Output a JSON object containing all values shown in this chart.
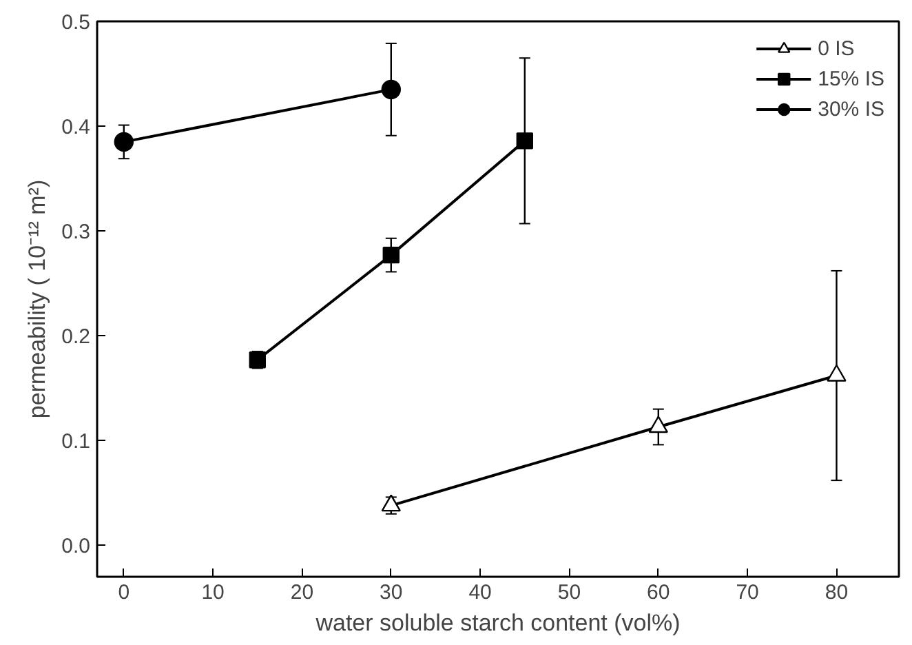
{
  "chart_data": {
    "type": "line",
    "xlabel": "water soluble starch content (vol%)",
    "ylabel": "permeability ( 10⁻¹² m²)",
    "xlim": [
      -3,
      87
    ],
    "ylim": [
      -0.03,
      0.5
    ],
    "xticks": [
      0,
      10,
      20,
      30,
      40,
      50,
      60,
      70,
      80
    ],
    "yticks": [
      {
        "value": 0,
        "label": "0.0"
      },
      {
        "value": 0.1,
        "label": "0.1"
      },
      {
        "value": 0.2,
        "label": "0.2"
      },
      {
        "value": 0.3,
        "label": "0.3"
      },
      {
        "value": 0.4,
        "label": "0.4"
      },
      {
        "value": 0.5,
        "label": "0.5"
      }
    ],
    "grid": false,
    "legend": "top right",
    "line_style": "solid",
    "series": [
      {
        "name": "0 IS",
        "color": "#000000",
        "marker": "triangle_open",
        "x": [
          30,
          60,
          80
        ],
        "values": [
          0.038,
          0.113,
          0.162
        ],
        "errors": [
          0.008,
          0.017,
          0.1
        ]
      },
      {
        "name": "15% IS",
        "color": "#000000",
        "marker": "square",
        "x": [
          15,
          30,
          45
        ],
        "values": [
          0.177,
          0.277,
          0.386
        ],
        "errors": [
          0.008,
          0.016,
          0.079
        ]
      },
      {
        "name": "30% IS",
        "color": "#000000",
        "marker": "circle",
        "x": [
          0,
          30
        ],
        "values": [
          0.385,
          0.435
        ],
        "errors": [
          0.016,
          0.044
        ]
      }
    ]
  }
}
